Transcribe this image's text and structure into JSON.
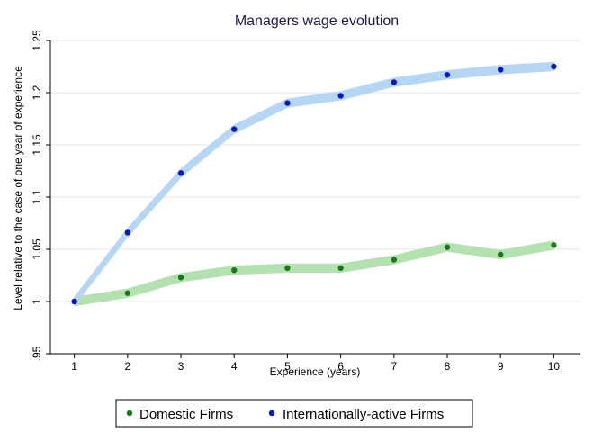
{
  "chart_data": {
    "type": "line",
    "title": "Managers wage evolution",
    "xlabel": "Experience (years)",
    "ylabel": "Level relative to the case of one year of experience",
    "x": [
      1,
      2,
      3,
      4,
      5,
      6,
      7,
      8,
      9,
      10
    ],
    "xticks": [
      "1",
      "2",
      "3",
      "4",
      "5",
      "6",
      "7",
      "8",
      "9",
      "10"
    ],
    "xlim": [
      0.55,
      10.5
    ],
    "ylim": [
      0.95,
      1.25
    ],
    "yticks": [
      0.95,
      1,
      1.05,
      1.1,
      1.15,
      1.2,
      1.25
    ],
    "ytick_labels": [
      ".95",
      "1",
      "1.05",
      "1.1",
      "1.15",
      "1.2",
      "1.25"
    ],
    "grid": true,
    "legend_position": "bottom",
    "series": [
      {
        "name": "Domestic Firms",
        "values": [
          1.0,
          1.008,
          1.023,
          1.03,
          1.032,
          1.032,
          1.04,
          1.052,
          1.045,
          1.054
        ],
        "band_half_width": 0.004,
        "marker_color": "#1a7a1a",
        "band_color": "#b3e2b0"
      },
      {
        "name": "Internationally-active Firms",
        "values": [
          1.0,
          1.066,
          1.123,
          1.165,
          1.19,
          1.197,
          1.21,
          1.217,
          1.222,
          1.225
        ],
        "band_half_width": 0.004,
        "marker_color": "#0a14c8",
        "band_color": "#b6d6f5"
      }
    ]
  }
}
